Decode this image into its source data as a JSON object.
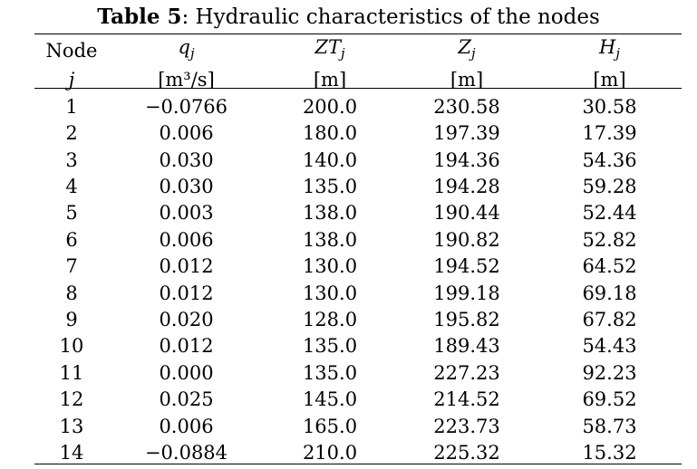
{
  "caption": {
    "label": "Table 5",
    "text": ": Hydraulic characteristics of the nodes"
  },
  "header": {
    "names": [
      "Node",
      "qj",
      "ZTj",
      "Zj",
      "Hj"
    ],
    "units": [
      "j",
      "[m³/s]",
      "[m]",
      "[m]",
      "[m]"
    ]
  },
  "rows": [
    [
      "1",
      "−0.0766",
      "200.0",
      "230.58",
      "30.58"
    ],
    [
      "2",
      "0.006",
      "180.0",
      "197.39",
      "17.39"
    ],
    [
      "3",
      "0.030",
      "140.0",
      "194.36",
      "54.36"
    ],
    [
      "4",
      "0.030",
      "135.0",
      "194.28",
      "59.28"
    ],
    [
      "5",
      "0.003",
      "138.0",
      "190.44",
      "52.44"
    ],
    [
      "6",
      "0.006",
      "138.0",
      "190.82",
      "52.82"
    ],
    [
      "7",
      "0.012",
      "130.0",
      "194.52",
      "64.52"
    ],
    [
      "8",
      "0.012",
      "130.0",
      "199.18",
      "69.18"
    ],
    [
      "9",
      "0.020",
      "128.0",
      "195.82",
      "67.82"
    ],
    [
      "10",
      "0.012",
      "135.0",
      "189.43",
      "54.43"
    ],
    [
      "11",
      "0.000",
      "135.0",
      "227.23",
      "92.23"
    ],
    [
      "12",
      "0.025",
      "145.0",
      "214.52",
      "69.52"
    ],
    [
      "13",
      "0.006",
      "165.0",
      "223.73",
      "58.73"
    ],
    [
      "14",
      "−0.0884",
      "210.0",
      "225.32",
      "15.32"
    ]
  ]
}
